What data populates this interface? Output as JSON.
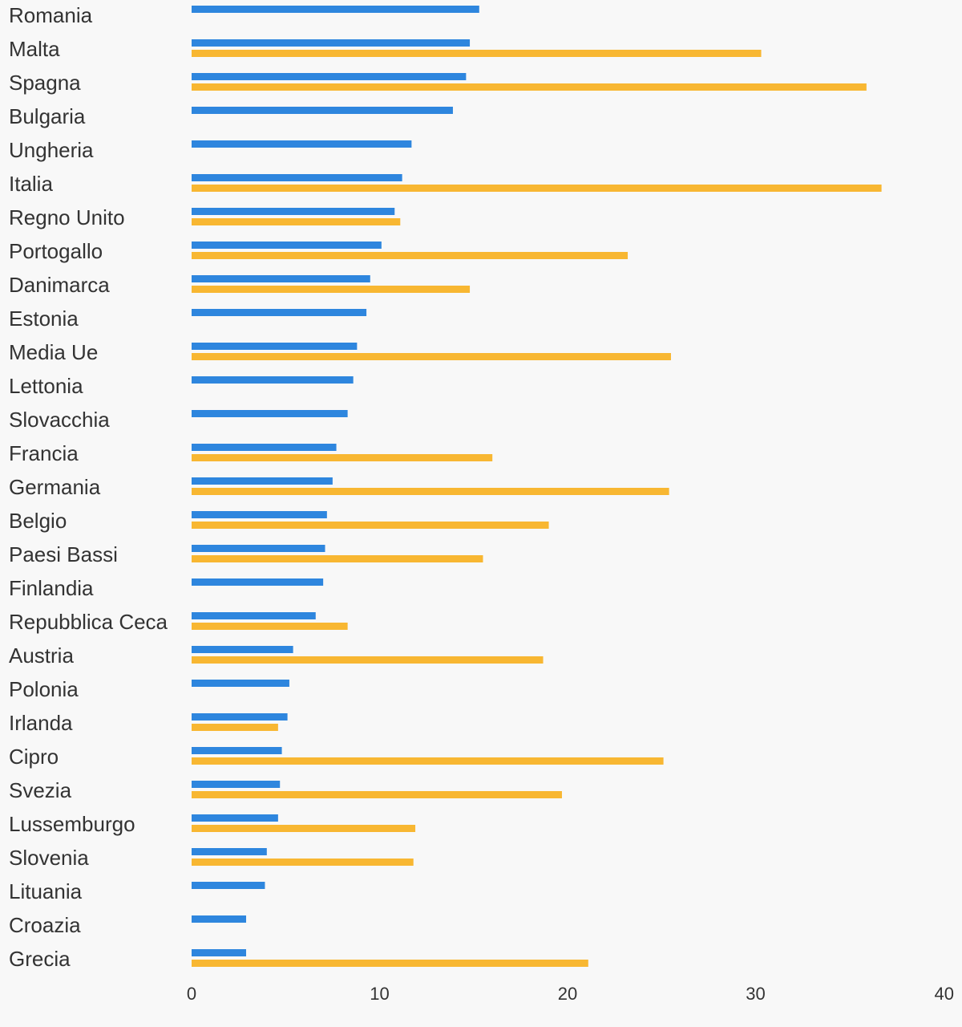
{
  "chart_data": {
    "type": "bar",
    "orientation": "horizontal",
    "categories": [
      "Romania",
      "Malta",
      "Spagna",
      "Bulgaria",
      "Ungheria",
      "Italia",
      "Regno Unito",
      "Portogallo",
      "Danimarca",
      "Estonia",
      "Media Ue",
      "Lettonia",
      "Slovacchia",
      "Francia",
      "Germania",
      "Belgio",
      "Paesi Bassi",
      "Finlandia",
      "Repubblica Ceca",
      "Austria",
      "Polonia",
      "Irlanda",
      "Cipro",
      "Svezia",
      "Lussemburgo",
      "Slovenia",
      "Lituania",
      "Croazia",
      "Grecia"
    ],
    "series": [
      {
        "color": "#2e86de",
        "values": [
          15.3,
          14.8,
          14.6,
          13.9,
          11.7,
          11.2,
          10.8,
          10.1,
          9.5,
          9.3,
          8.8,
          8.6,
          8.3,
          7.7,
          7.5,
          7.2,
          7.1,
          7.0,
          6.6,
          5.4,
          5.2,
          5.1,
          4.8,
          4.7,
          4.6,
          4.0,
          3.9,
          2.9,
          2.9
        ]
      },
      {
        "color": "#f8b732",
        "values": [
          null,
          30.3,
          35.9,
          null,
          null,
          36.7,
          11.1,
          23.2,
          14.8,
          null,
          25.5,
          null,
          null,
          16.0,
          25.4,
          19.0,
          15.5,
          null,
          8.3,
          18.7,
          null,
          4.6,
          25.1,
          19.7,
          11.9,
          11.8,
          null,
          null,
          21.1
        ]
      }
    ],
    "xlim": [
      0,
      40
    ],
    "xticks": [
      0,
      10,
      20,
      30,
      40
    ],
    "grid": false,
    "legend": "none",
    "title": "",
    "xlabel": "",
    "ylabel": ""
  }
}
